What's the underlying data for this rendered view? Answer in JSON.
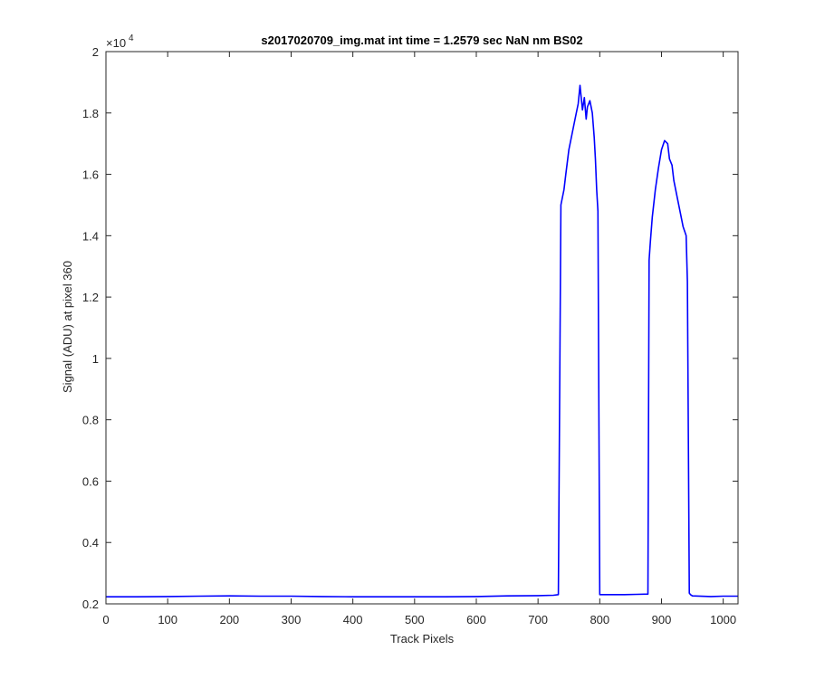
{
  "chart_data": {
    "type": "line",
    "title": "s2017020709_img.mat int time = 1.2579 sec  NaN nm BS02",
    "xlabel": "Track Pixels",
    "ylabel": "Signal (ADU) at pixel 360",
    "xlim": [
      0,
      1024
    ],
    "ylim": [
      2000,
      20000
    ],
    "y_exponent_label": "×10",
    "y_exponent_power": "4",
    "x_ticks": [
      0,
      100,
      200,
      300,
      400,
      500,
      600,
      700,
      800,
      900,
      1000
    ],
    "x_tick_labels": [
      "0",
      "100",
      "200",
      "300",
      "400",
      "500",
      "600",
      "700",
      "800",
      "900",
      "1000"
    ],
    "y_ticks": [
      2000,
      4000,
      6000,
      8000,
      10000,
      12000,
      14000,
      16000,
      18000,
      20000
    ],
    "y_tick_labels": [
      "0.2",
      "0.4",
      "0.6",
      "0.8",
      "1",
      "1.2",
      "1.4",
      "1.6",
      "1.8",
      "2"
    ],
    "grid": false,
    "series": [
      {
        "color": "#0000ff",
        "x": [
          0,
          50,
          100,
          150,
          200,
          250,
          300,
          350,
          400,
          450,
          500,
          550,
          600,
          650,
          700,
          725,
          733,
          737,
          742,
          745,
          750,
          755,
          760,
          765,
          768,
          772,
          775,
          778,
          780,
          784,
          788,
          791,
          793,
          795,
          797,
          800,
          820,
          840,
          860,
          878,
          880,
          882,
          885,
          890,
          895,
          900,
          905,
          910,
          913,
          917,
          920,
          925,
          930,
          935,
          940,
          942,
          945,
          947,
          950,
          980,
          1000,
          1024
        ],
        "y": [
          2230,
          2230,
          2240,
          2250,
          2260,
          2250,
          2250,
          2240,
          2230,
          2230,
          2230,
          2230,
          2240,
          2260,
          2270,
          2280,
          2300,
          15000,
          15500,
          16000,
          16800,
          17300,
          17800,
          18300,
          18900,
          18100,
          18500,
          17800,
          18200,
          18400,
          18000,
          17200,
          16500,
          15500,
          14800,
          2300,
          2300,
          2300,
          2310,
          2320,
          13200,
          13800,
          14600,
          15500,
          16200,
          16800,
          17100,
          17000,
          16500,
          16300,
          15800,
          15300,
          14800,
          14300,
          14000,
          12500,
          2350,
          2300,
          2260,
          2240,
          2250,
          2250
        ]
      }
    ]
  }
}
